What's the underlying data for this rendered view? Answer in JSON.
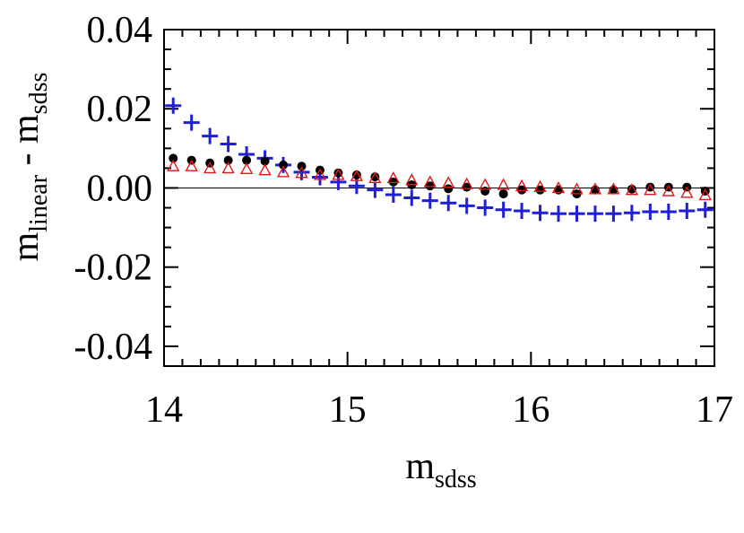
{
  "chart_data": {
    "type": "scatter",
    "title": "",
    "xlabel": {
      "main": "m",
      "sub": "sdss"
    },
    "ylabel": {
      "main": "m",
      "sub1": "linear",
      "mid": " - m",
      "sub2": "sdss"
    },
    "xlim": [
      14,
      17
    ],
    "ylim": [
      -0.045,
      0.04
    ],
    "xticks": [
      14,
      15,
      16,
      17
    ],
    "xtick_labels": [
      "14",
      "15",
      "16",
      "17"
    ],
    "yticks": [
      -0.04,
      -0.02,
      0.0,
      0.02,
      0.04
    ],
    "ytick_labels": [
      "-0.04",
      "-0.02",
      "0.00",
      "0.02",
      "0.04"
    ],
    "reference_line_y": 0,
    "grid": false,
    "legend": "none",
    "colors": {
      "crosses": "#1f1fd6",
      "dots": "#000000",
      "triangles": "#e01818"
    },
    "series": [
      {
        "marker": "cross",
        "x": [
          14.05,
          14.15,
          14.25,
          14.35,
          14.45,
          14.55,
          14.65,
          14.75,
          14.85,
          14.95,
          15.05,
          15.15,
          15.25,
          15.35,
          15.45,
          15.55,
          15.65,
          15.75,
          15.85,
          15.95,
          16.05,
          16.15,
          16.25,
          16.35,
          16.45,
          16.55,
          16.65,
          16.75,
          16.85,
          16.95
        ],
        "y": [
          0.0208,
          0.0165,
          0.0131,
          0.0111,
          0.0085,
          0.0075,
          0.0058,
          0.004,
          0.0027,
          0.0015,
          0.0005,
          -0.0005,
          -0.0017,
          -0.0025,
          -0.0032,
          -0.0038,
          -0.0045,
          -0.005,
          -0.0055,
          -0.0058,
          -0.0063,
          -0.0065,
          -0.0065,
          -0.0065,
          -0.0065,
          -0.0063,
          -0.006,
          -0.006,
          -0.0058,
          -0.0055
        ]
      },
      {
        "marker": "dot",
        "x": [
          14.05,
          14.15,
          14.25,
          14.35,
          14.45,
          14.55,
          14.65,
          14.75,
          14.85,
          14.95,
          15.05,
          15.15,
          15.25,
          15.35,
          15.45,
          15.55,
          15.65,
          15.75,
          15.85,
          15.95,
          16.05,
          16.15,
          16.25,
          16.35,
          16.45,
          16.55,
          16.65,
          16.75,
          16.85,
          16.95
        ],
        "y": [
          0.0075,
          0.007,
          0.0063,
          0.007,
          0.007,
          0.0068,
          0.0058,
          0.0055,
          0.0045,
          0.0038,
          0.0033,
          0.0028,
          0.0015,
          0.0008,
          0.0005,
          -0.0002,
          0.0002,
          -0.0008,
          -0.0015,
          -0.0005,
          -0.0005,
          -0.0005,
          -0.0015,
          -0.0005,
          -0.0005,
          -0.0003,
          0.0002,
          0.0002,
          0.0002,
          -0.0008
        ]
      },
      {
        "marker": "triangle",
        "x": [
          14.05,
          14.15,
          14.25,
          14.35,
          14.45,
          14.55,
          14.65,
          14.75,
          14.85,
          14.95,
          15.05,
          15.15,
          15.25,
          15.35,
          15.45,
          15.55,
          15.65,
          15.75,
          15.85,
          15.95,
          16.05,
          16.15,
          16.25,
          16.35,
          16.45,
          16.55,
          16.65,
          16.75,
          16.85,
          16.95
        ],
        "y": [
          0.0055,
          0.0055,
          0.005,
          0.005,
          0.0048,
          0.0045,
          0.004,
          0.0038,
          0.0033,
          0.0033,
          0.003,
          0.0025,
          0.0025,
          0.002,
          0.0015,
          0.0013,
          0.001,
          0.0008,
          0.0008,
          0.0005,
          0.0003,
          0.0,
          -0.0003,
          -0.0003,
          -0.0003,
          -0.0005,
          -0.0005,
          -0.0008,
          -0.0012,
          -0.0018
        ]
      }
    ]
  }
}
